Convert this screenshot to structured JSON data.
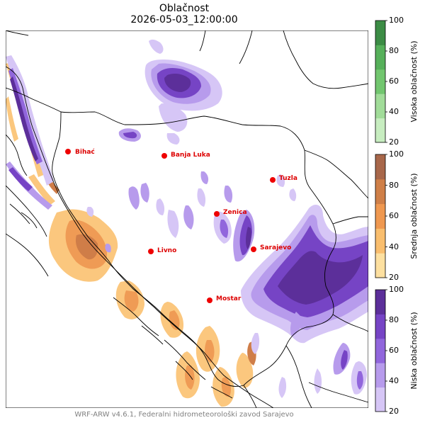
{
  "title": "Oblačnost",
  "datetime": "2026-05-03_12:00:00",
  "footer": "WRF-ARW v4.6.1, Federalni hidrometeorološki zavod Sarajevo",
  "cities": [
    {
      "name": "Bihać"
    },
    {
      "name": "Banja Luka"
    },
    {
      "name": "Tuzla"
    },
    {
      "name": "Zenica"
    },
    {
      "name": "Sarajevo"
    },
    {
      "name": "Livno"
    },
    {
      "name": "Mostar"
    }
  ],
  "colorbars": [
    {
      "label": "Visoka oblačnost (%)",
      "ticks": [
        "100",
        "80",
        "60",
        "40",
        "20"
      ],
      "colors": [
        "#c7edc0",
        "#a1dc99",
        "#72c66f",
        "#56b05a",
        "#3c8c45"
      ]
    },
    {
      "label": "Srednja oblačnost (%)",
      "ticks": [
        "100",
        "80",
        "60",
        "40",
        "20"
      ],
      "colors": [
        "#fde0a0",
        "#f9be6e",
        "#ef9850",
        "#cf7f48",
        "#a8674a"
      ]
    },
    {
      "label": "Niska oblačnost (%)",
      "ticks": [
        "100",
        "80",
        "60",
        "40",
        "20"
      ],
      "colors": [
        "#d6c6f6",
        "#b79bec",
        "#9166dc",
        "#7644c5",
        "#5c2f9a"
      ]
    }
  ],
  "colors": {
    "city": "#ee0000",
    "city_label": "#dd0000",
    "border": "#000000"
  }
}
